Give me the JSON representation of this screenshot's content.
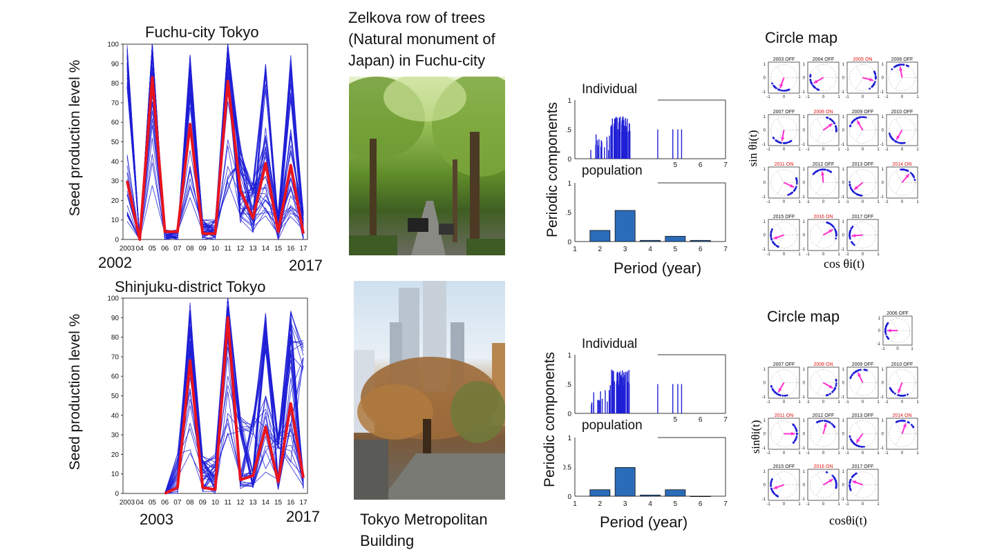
{
  "colors": {
    "individual": "#1f1fd6",
    "mean": "#e8141e",
    "bar": "#2b6cb8",
    "arrow": "#ff2fd0",
    "on": "#e01010"
  },
  "top": {
    "chart_title": "Fuchu-city Tokyo",
    "ylabel": "Seed production level %",
    "year_start": "2002",
    "year_end": "2017",
    "photo_caption": "Zelkova row of trees (Natural monument of Japan) in Fuchu-city",
    "photo_caption_lines": [
      "Zelkova row of trees",
      "(Natural monument of",
      "Japan) in Fuchu-city"
    ],
    "periodic_ylabel": "Periodic components",
    "individual_label": "Individual",
    "population_label": "population",
    "period_xlabel": "Period (year)",
    "circle_title": "Circle map",
    "circle_ylabel": "sin θi(t)",
    "circle_xlabel": "cos θi(t)",
    "panels": [
      {
        "label": "2003 OFF",
        "on": false,
        "angle": 250
      },
      {
        "label": "2004 OFF",
        "on": false,
        "angle": 210
      },
      {
        "label": "2005 ON",
        "on": true,
        "angle": 345
      },
      {
        "label": "2006 OFF",
        "on": false,
        "angle": 100
      },
      {
        "label": "2007 OFF",
        "on": false,
        "angle": 260
      },
      {
        "label": "2008 ON",
        "on": true,
        "angle": 35
      },
      {
        "label": "2009 OFF",
        "on": false,
        "angle": 120
      },
      {
        "label": "2010 OFF",
        "on": false,
        "angle": 240
      },
      {
        "label": "2011 ON",
        "on": true,
        "angle": 335
      },
      {
        "label": "2012 OFF",
        "on": false,
        "angle": 95
      },
      {
        "label": "2013 OFF",
        "on": false,
        "angle": 220
      },
      {
        "label": "2014 ON",
        "on": true,
        "angle": 50
      },
      {
        "label": "2015 OFF",
        "on": false,
        "angle": 200
      },
      {
        "label": "2016 ON",
        "on": true,
        "angle": 30
      },
      {
        "label": "2017 OFF",
        "on": false,
        "angle": 185
      }
    ]
  },
  "bottom": {
    "chart_title": "Shinjuku-district Tokyo",
    "ylabel": "Seed production level  %",
    "year_start": "2003",
    "year_end": "2017",
    "photo_caption": "Tokyo Metropolitan Building",
    "photo_caption_lines": [
      "Tokyo Metropolitan",
      "Building"
    ],
    "periodic_ylabel": "Periodic components",
    "individual_label": "Individual",
    "population_label": "population",
    "period_xlabel": "Period (year)",
    "circle_title": "Circle map",
    "circle_ylabel": "sinθi(t)",
    "circle_xlabel": "cosθi(t)",
    "panel_2006": {
      "label": "2006 OFF",
      "on": false,
      "angle": 180
    },
    "panels": [
      {
        "label": "2007 OFF",
        "on": false,
        "angle": 240
      },
      {
        "label": "2008 ON",
        "on": true,
        "angle": 330
      },
      {
        "label": "2009 OFF",
        "on": false,
        "angle": 115
      },
      {
        "label": "2010 OFF",
        "on": false,
        "angle": 250
      },
      {
        "label": "2011 ON",
        "on": true,
        "angle": 0
      },
      {
        "label": "2012 OFF",
        "on": false,
        "angle": 75
      },
      {
        "label": "2013 OFF",
        "on": false,
        "angle": 235
      },
      {
        "label": "2014 ON",
        "on": true,
        "angle": 70
      },
      {
        "label": "2015 OFF",
        "on": false,
        "angle": 200
      },
      {
        "label": "2016 ON",
        "on": true,
        "angle": 30
      },
      {
        "label": "2017 OFF",
        "on": false,
        "angle": 160
      }
    ]
  },
  "chart_data": [
    {
      "type": "line",
      "title": "Fuchu-city Tokyo",
      "ylabel": "Seed production level %",
      "x": [
        "2003",
        "04",
        "05",
        "06",
        "07",
        "08",
        "09",
        "10",
        "11",
        "12",
        "13",
        "14",
        "15",
        "16",
        "17"
      ],
      "ylim": [
        0,
        100
      ],
      "yticks": [
        0,
        10,
        20,
        30,
        40,
        50,
        60,
        70,
        80,
        90,
        100
      ],
      "series": [
        {
          "values": [
            30,
            0,
            83,
            4,
            4,
            59,
            3,
            3,
            81,
            25,
            11,
            39,
            4,
            38,
            3
          ]
        }
      ],
      "individual_peaks": [
        100,
        0,
        100,
        5,
        5,
        95,
        10,
        10,
        100,
        50,
        30,
        95,
        15,
        95,
        15
      ]
    },
    {
      "type": "bar",
      "xlim": [
        1,
        7
      ],
      "xticks": [
        1,
        2,
        3,
        4,
        5,
        6,
        7
      ],
      "ylim": [
        0,
        1
      ],
      "x": [
        2,
        3,
        4,
        5,
        6
      ],
      "values": [
        0.19,
        0.53,
        0.02,
        0.09,
        0.02
      ]
    },
    {
      "type": "line",
      "title": "Shinjuku-district Tokyo",
      "ylabel": "Seed production level  %",
      "x": [
        "2003",
        "04",
        "05",
        "06",
        "07",
        "08",
        "09",
        "10",
        "11",
        "12",
        "13",
        "14",
        "15",
        "16",
        "17"
      ],
      "ylim": [
        0,
        100
      ],
      "yticks": [
        0,
        10,
        20,
        30,
        40,
        50,
        60,
        70,
        80,
        90,
        100
      ],
      "series": [
        {
          "values": [
            null,
            null,
            null,
            0,
            3,
            68,
            3,
            2,
            90,
            7,
            9,
            34,
            6,
            46,
            8
          ]
        }
      ],
      "individual_peaks": [
        null,
        null,
        null,
        0,
        20,
        95,
        20,
        20,
        100,
        40,
        40,
        95,
        30,
        95,
        80
      ]
    },
    {
      "type": "bar",
      "xlim": [
        1,
        7
      ],
      "xticks": [
        1,
        2,
        3,
        4,
        5,
        6,
        7
      ],
      "ylim": [
        0,
        1
      ],
      "yticks": [
        0,
        0.5,
        1
      ],
      "x": [
        2,
        3,
        4,
        5,
        6
      ],
      "values": [
        0.11,
        0.49,
        0.02,
        0.11,
        0.0
      ]
    }
  ]
}
